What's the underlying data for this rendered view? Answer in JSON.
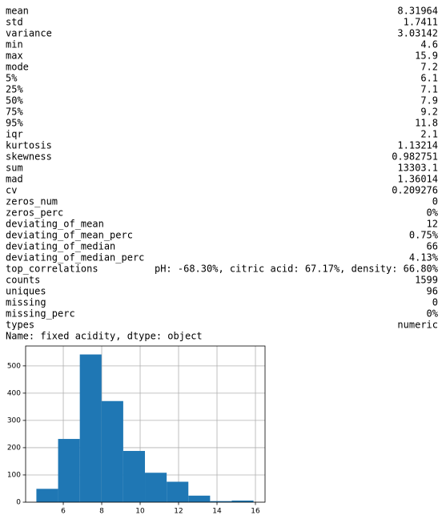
{
  "table": {
    "rows": [
      [
        "mean",
        "8.31964"
      ],
      [
        "std",
        "1.7411"
      ],
      [
        "variance",
        "3.03142"
      ],
      [
        "min",
        "4.6"
      ],
      [
        "max",
        "15.9"
      ],
      [
        "mode",
        "7.2"
      ],
      [
        "5%",
        "6.1"
      ],
      [
        "25%",
        "7.1"
      ],
      [
        "50%",
        "7.9"
      ],
      [
        "75%",
        "9.2"
      ],
      [
        "95%",
        "11.8"
      ],
      [
        "iqr",
        "2.1"
      ],
      [
        "kurtosis",
        "1.13214"
      ],
      [
        "skewness",
        "0.982751"
      ],
      [
        "sum",
        "13303.1"
      ],
      [
        "mad",
        "1.36014"
      ],
      [
        "cv",
        "0.209276"
      ],
      [
        "zeros_num",
        "0"
      ],
      [
        "zeros_perc",
        "0%"
      ],
      [
        "deviating_of_mean",
        "12"
      ],
      [
        "deviating_of_mean_perc",
        "0.75%"
      ],
      [
        "deviating_of_median",
        "66"
      ],
      [
        "deviating_of_median_perc",
        "4.13%"
      ],
      [
        "top_correlations",
        "pH: -68.30%, citric acid: 67.17%, density: 66.80%"
      ],
      [
        "counts",
        "1599"
      ],
      [
        "uniques",
        "96"
      ],
      [
        "missing",
        "0"
      ],
      [
        "missing_perc",
        "0%"
      ],
      [
        "types",
        "numeric"
      ]
    ],
    "footer": "Name: fixed acidity, dtype: object"
  },
  "chart_data": {
    "type": "histogram",
    "bins": [
      4.6,
      5.73,
      6.86,
      7.99,
      9.12,
      10.25,
      11.38,
      12.51,
      13.64,
      14.77,
      15.9
    ],
    "counts": [
      49,
      232,
      542,
      371,
      188,
      108,
      75,
      24,
      4,
      6
    ],
    "color": "#1f77b4",
    "xlim": [
      4.04,
      16.5
    ],
    "xticks": [
      6,
      8,
      10,
      12,
      14,
      16
    ],
    "ylim": [
      0,
      573
    ],
    "yticks": [
      0,
      100,
      200,
      300,
      400,
      500
    ],
    "grid": true
  }
}
